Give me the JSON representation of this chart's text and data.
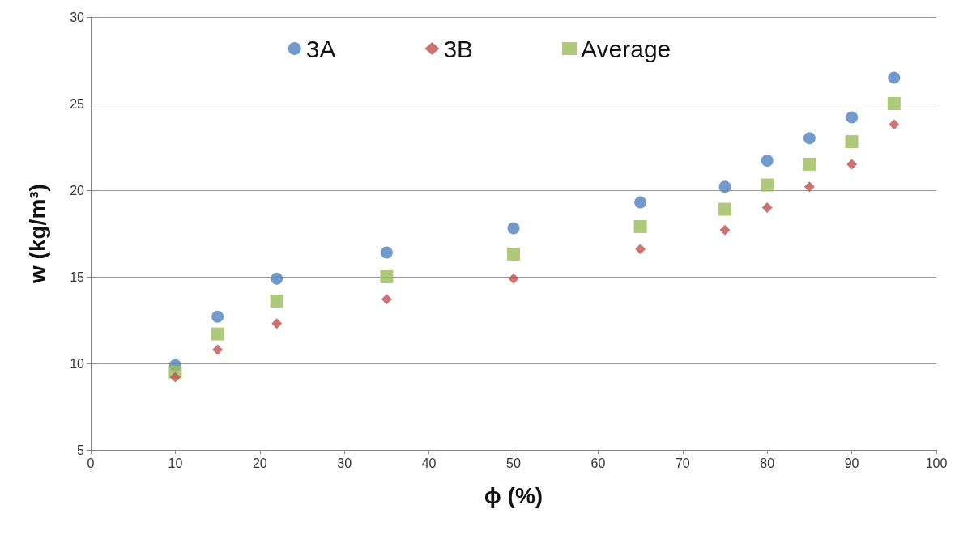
{
  "chart_data": {
    "type": "scatter",
    "xlabel": "ϕ (%)",
    "ylabel": "w (kg/m³)",
    "x": [
      10,
      15,
      22,
      35,
      50,
      65,
      75,
      80,
      85,
      90,
      95
    ],
    "series": [
      {
        "name": "3A",
        "color": "#4f81bd",
        "marker": "circle",
        "values": [
          9.9,
          12.7,
          14.9,
          16.4,
          17.8,
          19.3,
          20.2,
          21.7,
          23.0,
          24.2,
          26.5
        ]
      },
      {
        "name": "3B",
        "color": "#c0504d",
        "marker": "diamond",
        "values": [
          9.2,
          10.8,
          12.3,
          13.7,
          14.9,
          16.6,
          17.7,
          19.0,
          20.2,
          21.5,
          23.8
        ]
      },
      {
        "name": "Average",
        "color": "#9bbb59",
        "marker": "square",
        "values": [
          9.5,
          11.7,
          13.6,
          15.0,
          16.3,
          17.9,
          18.9,
          20.3,
          21.5,
          22.8,
          25.0
        ]
      }
    ],
    "xlim": [
      0,
      100
    ],
    "xticks": [
      0,
      10,
      20,
      30,
      40,
      50,
      60,
      70,
      80,
      90,
      100
    ],
    "ylim": [
      5,
      30
    ],
    "yticks": [
      5,
      10,
      15,
      20,
      25,
      30
    ],
    "grid": "y",
    "legend": "top"
  }
}
